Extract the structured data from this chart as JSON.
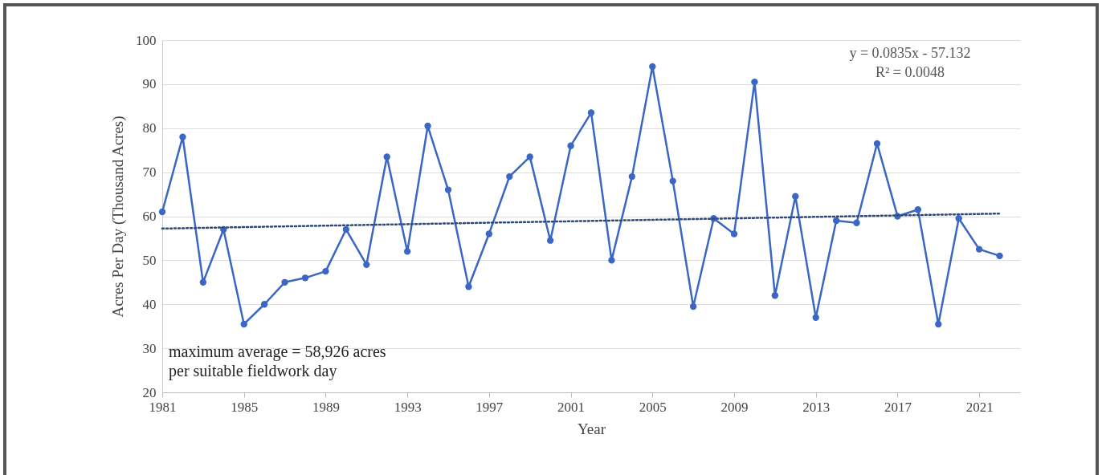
{
  "chart_data": {
    "type": "line",
    "xlabel": "Year",
    "ylabel": "Acres Per Day (Thousand Acres)",
    "x": [
      1981,
      1982,
      1983,
      1984,
      1985,
      1986,
      1987,
      1988,
      1989,
      1990,
      1991,
      1992,
      1993,
      1994,
      1995,
      1996,
      1997,
      1998,
      1999,
      2000,
      2001,
      2002,
      2003,
      2004,
      2005,
      2006,
      2007,
      2008,
      2009,
      2010,
      2011,
      2012,
      2013,
      2014,
      2015,
      2016,
      2017,
      2018,
      2019,
      2020,
      2021,
      2022
    ],
    "series": [
      {
        "color": "#3a66c4",
        "marker": "circle",
        "line_style": "solid",
        "values": [
          61,
          78,
          45,
          57,
          35.5,
          40,
          45,
          46,
          47.5,
          57,
          49,
          73.5,
          52,
          80.5,
          66,
          44,
          56,
          69,
          73.5,
          54.5,
          76,
          83.5,
          50,
          69,
          94,
          68,
          39.5,
          59.5,
          56,
          90.5,
          42,
          64.5,
          37,
          59,
          58.5,
          76.5,
          60,
          61.5,
          35.5,
          59.5,
          52.5,
          51
        ]
      },
      {
        "type": "line",
        "color": "#2f4a7a",
        "marker": "none",
        "line_style": "dotted",
        "x": [
          1981,
          2022
        ],
        "values": [
          57.2,
          60.6
        ]
      }
    ],
    "xlim": [
      1981,
      2023
    ],
    "xticks": [
      1981,
      1985,
      1989,
      1993,
      1997,
      2001,
      2005,
      2009,
      2013,
      2017,
      2021
    ],
    "ylim": [
      20,
      100
    ],
    "yticks": [
      20,
      30,
      40,
      50,
      60,
      70,
      80,
      90,
      100
    ],
    "grid": "y",
    "annotations": [
      "y = 0.0835x - 57.132\nR² = 0.0048",
      "maximum average = 58,926 acres\nper suitable fieldwork day"
    ]
  }
}
